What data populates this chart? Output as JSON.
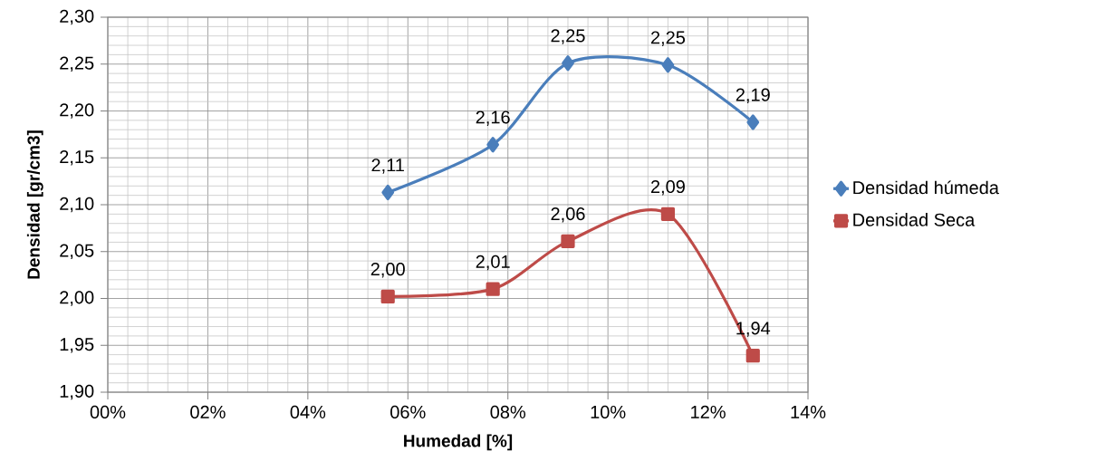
{
  "chart_data": {
    "type": "line",
    "xlabel": "Humedad [%]",
    "ylabel": "Densidad [gr/cm3]",
    "xlim": [
      0,
      14
    ],
    "ylim": [
      1.9,
      2.3
    ],
    "xticks": [
      {
        "value": 0,
        "label": "00%"
      },
      {
        "value": 2,
        "label": "02%"
      },
      {
        "value": 4,
        "label": "04%"
      },
      {
        "value": 6,
        "label": "06%"
      },
      {
        "value": 8,
        "label": "08%"
      },
      {
        "value": 10,
        "label": "10%"
      },
      {
        "value": 12,
        "label": "12%"
      },
      {
        "value": 14,
        "label": "14%"
      }
    ],
    "yticks": [
      {
        "value": 1.9,
        "label": "1,90"
      },
      {
        "value": 1.95,
        "label": "1,95"
      },
      {
        "value": 2.0,
        "label": "2,00"
      },
      {
        "value": 2.05,
        "label": "2,05"
      },
      {
        "value": 2.1,
        "label": "2,10"
      },
      {
        "value": 2.15,
        "label": "2,15"
      },
      {
        "value": 2.2,
        "label": "2,20"
      },
      {
        "value": 2.25,
        "label": "2,25"
      },
      {
        "value": 2.3,
        "label": "2,30"
      }
    ],
    "grid": true,
    "legend": "right",
    "line_style": "solid",
    "series": [
      {
        "name": "Densidad húmeda",
        "color": "#4a7ebb",
        "marker": "diamond",
        "x": [
          5.6,
          7.7,
          9.2,
          11.2,
          12.9
        ],
        "values": [
          2.113,
          2.164,
          2.251,
          2.249,
          2.188
        ],
        "value_labels": [
          "2,11",
          "2,16",
          "2,25",
          "2,25",
          "2,19"
        ]
      },
      {
        "name": "Densidad Seca",
        "color": "#be4b48",
        "marker": "square",
        "x": [
          5.6,
          7.7,
          9.2,
          11.2,
          12.9
        ],
        "values": [
          2.002,
          2.01,
          2.061,
          2.09,
          1.939
        ],
        "value_labels": [
          "2,00",
          "2,01",
          "2,06",
          "2,09",
          "1,94"
        ]
      }
    ]
  }
}
